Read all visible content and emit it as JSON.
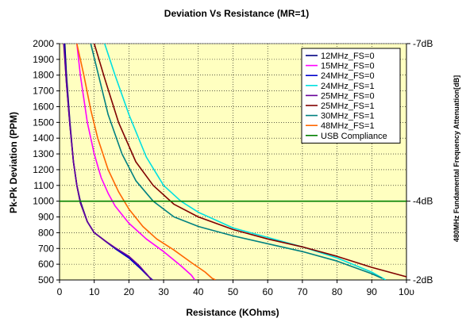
{
  "chart_data": {
    "type": "line",
    "title": "Deviation Vs Resistance (MR=1)",
    "xlabel": "Resistance (KOhms)",
    "ylabel": "Pk-Pk Deviation (PPM)",
    "right_ylabel": "480MHz   Fundamental Frequency Attenuation[dB]",
    "xlim": [
      0,
      100
    ],
    "ylim": [
      500,
      2000
    ],
    "x_ticks": [
      "0",
      "10",
      "20",
      "30",
      "40",
      "50",
      "60",
      "70",
      "80",
      "90",
      "10υ"
    ],
    "x_tick_values": [
      0,
      10,
      20,
      30,
      40,
      50,
      60,
      70,
      80,
      90,
      100
    ],
    "y_ticks": [
      500,
      600,
      700,
      800,
      900,
      1000,
      1100,
      1200,
      1300,
      1400,
      1500,
      1600,
      1700,
      1800,
      1900,
      2000
    ],
    "right_ticks": [
      {
        "label": "-7dB",
        "y": 2000
      },
      {
        "label": "-4dB",
        "y": 1000
      },
      {
        "label": "-2dB",
        "y": 500
      }
    ],
    "grid": true,
    "legend_position": "top-right",
    "plot_bg": "#FFFFC0",
    "series": [
      {
        "name": "12MHz_FS=0",
        "color": "#000080",
        "points": [
          [
            1.5,
            2000
          ],
          [
            2,
            1800
          ],
          [
            3,
            1500
          ],
          [
            4,
            1250
          ],
          [
            5,
            1100
          ],
          [
            6,
            1000
          ],
          [
            8,
            870
          ],
          [
            10,
            800
          ],
          [
            13,
            750
          ],
          [
            16,
            700
          ],
          [
            20,
            640
          ],
          [
            23,
            580
          ],
          [
            25,
            540
          ],
          [
            26.5,
            500
          ]
        ]
      },
      {
        "name": "15MHz_FS=0",
        "color": "#FF00FF",
        "points": [
          [
            5,
            2000
          ],
          [
            6,
            1800
          ],
          [
            8,
            1500
          ],
          [
            10,
            1300
          ],
          [
            12,
            1150
          ],
          [
            14,
            1050
          ],
          [
            16,
            970
          ],
          [
            20,
            860
          ],
          [
            25,
            760
          ],
          [
            30,
            680
          ],
          [
            35,
            590
          ],
          [
            38,
            530
          ],
          [
            39,
            500
          ]
        ]
      },
      {
        "name": "24MHz_FS=0",
        "color": "#0000CC",
        "points": [
          [
            1.3,
            2000
          ],
          [
            2,
            1750
          ],
          [
            3,
            1480
          ],
          [
            4,
            1250
          ],
          [
            5,
            1100
          ],
          [
            6,
            990
          ],
          [
            8,
            870
          ],
          [
            10,
            800
          ],
          [
            13,
            750
          ],
          [
            16,
            700
          ],
          [
            20,
            640
          ],
          [
            23,
            580
          ],
          [
            25,
            535
          ],
          [
            26.8,
            500
          ]
        ]
      },
      {
        "name": "24MHz_FS=1",
        "color": "#00E0E0",
        "points": [
          [
            13,
            2000
          ],
          [
            16,
            1800
          ],
          [
            20,
            1550
          ],
          [
            25,
            1280
          ],
          [
            30,
            1100
          ],
          [
            35,
            1000
          ],
          [
            40,
            930
          ],
          [
            50,
            830
          ],
          [
            60,
            770
          ],
          [
            70,
            710
          ],
          [
            80,
            640
          ],
          [
            90,
            550
          ],
          [
            94,
            500
          ]
        ]
      },
      {
        "name": "25MHz_FS=0",
        "color": "#660099",
        "points": [
          [
            1.2,
            2000
          ],
          [
            2,
            1750
          ],
          [
            3,
            1480
          ],
          [
            4,
            1250
          ],
          [
            5,
            1100
          ],
          [
            6,
            990
          ],
          [
            8,
            870
          ],
          [
            10,
            800
          ],
          [
            13,
            750
          ],
          [
            16,
            705
          ],
          [
            20,
            650
          ],
          [
            23,
            590
          ],
          [
            25,
            540
          ],
          [
            26.6,
            500
          ]
        ]
      },
      {
        "name": "25MHz_FS=1",
        "color": "#800000",
        "points": [
          [
            10,
            2000
          ],
          [
            13,
            1780
          ],
          [
            17,
            1500
          ],
          [
            22,
            1250
          ],
          [
            27,
            1100
          ],
          [
            33,
            980
          ],
          [
            40,
            900
          ],
          [
            50,
            820
          ],
          [
            60,
            760
          ],
          [
            70,
            710
          ],
          [
            80,
            650
          ],
          [
            90,
            580
          ],
          [
            100,
            520
          ]
        ]
      },
      {
        "name": "30MHz_FS=1",
        "color": "#008080",
        "points": [
          [
            9,
            2000
          ],
          [
            11,
            1820
          ],
          [
            14,
            1550
          ],
          [
            18,
            1300
          ],
          [
            22,
            1130
          ],
          [
            27,
            1000
          ],
          [
            33,
            900
          ],
          [
            40,
            840
          ],
          [
            50,
            780
          ],
          [
            60,
            730
          ],
          [
            70,
            680
          ],
          [
            80,
            620
          ],
          [
            90,
            540
          ],
          [
            93,
            510
          ]
        ]
      },
      {
        "name": "48MHz_FS=1",
        "color": "#FF6600",
        "points": [
          [
            5,
            2000
          ],
          [
            7,
            1800
          ],
          [
            9,
            1580
          ],
          [
            11,
            1400
          ],
          [
            14,
            1200
          ],
          [
            17,
            1060
          ],
          [
            20,
            950
          ],
          [
            24,
            840
          ],
          [
            28,
            760
          ],
          [
            33,
            690
          ],
          [
            38,
            610
          ],
          [
            42,
            550
          ],
          [
            44,
            510
          ],
          [
            45,
            500
          ]
        ]
      },
      {
        "name": "USB Compliance",
        "color": "#008000",
        "points": [
          [
            0,
            1000
          ],
          [
            100,
            1000
          ]
        ]
      }
    ]
  }
}
